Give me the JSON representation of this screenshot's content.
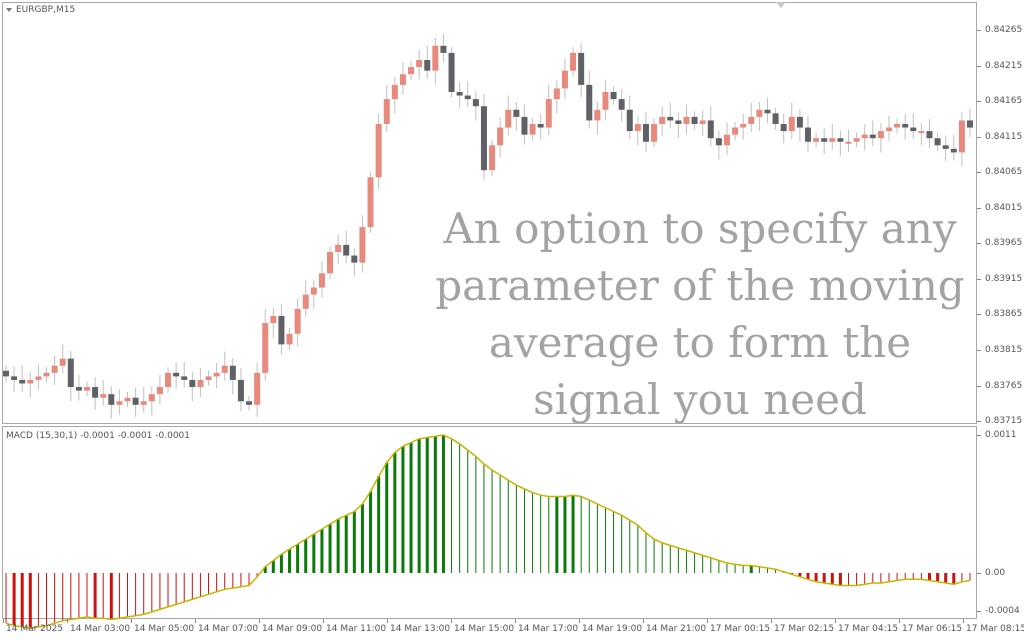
{
  "chart": {
    "symbol": "EURGBP,M15",
    "indicator_label": "MACD (15,30,1) -0.0001 -0.0001 -0.0001",
    "overlay_text": "An option to specify any parameter of the moving average to form the signal you need",
    "price_ticks": [
      "0.84265",
      "0.84215",
      "0.84165",
      "0.84115",
      "0.84065",
      "0.84015",
      "0.83965",
      "0.83915",
      "0.83865",
      "0.83815",
      "0.83765",
      "0.83715"
    ],
    "macd_ticks": [
      "0.0011",
      "0.00",
      "-0.0004"
    ],
    "time_ticks": [
      "14 Mar 2025",
      "14 Mar 03:00",
      "14 Mar 05:00",
      "14 Mar 07:00",
      "14 Mar 09:00",
      "14 Mar 11:00",
      "14 Mar 13:00",
      "14 Mar 15:00",
      "14 Mar 17:00",
      "14 Mar 19:00",
      "14 Mar 21:00",
      "17 Mar 00:15",
      "17 Mar 02:15",
      "17 Mar 04:15",
      "17 Mar 06:15",
      "17 Mar 08:15"
    ],
    "colors": {
      "bull": "#e8897e",
      "bear": "#5f6166",
      "hist_up": "#0a7a0a",
      "hist_down": "#cc1111",
      "signal": "#c8b400",
      "grid": "#a8a8a8"
    }
  },
  "chart_data": {
    "type": "candlestick+histogram",
    "price_range": [
      0.83705,
      0.84285
    ],
    "macd_range": [
      -0.00045,
      0.00112
    ],
    "candles_close": [
      0.83775,
      0.8377,
      0.83765,
      0.8377,
      0.83775,
      0.8378,
      0.8379,
      0.838,
      0.8376,
      0.83755,
      0.8376,
      0.83745,
      0.8375,
      0.83735,
      0.8374,
      0.83745,
      0.83735,
      0.8374,
      0.8375,
      0.8376,
      0.8378,
      0.83775,
      0.8377,
      0.8376,
      0.8377,
      0.83775,
      0.8378,
      0.8379,
      0.8377,
      0.8374,
      0.83735,
      0.8378,
      0.8385,
      0.8386,
      0.8382,
      0.83835,
      0.8387,
      0.8389,
      0.839,
      0.8392,
      0.8395,
      0.8396,
      0.83945,
      0.83935,
      0.83985,
      0.84055,
      0.8413,
      0.84165,
      0.84185,
      0.842,
      0.8421,
      0.8422,
      0.84205,
      0.8424,
      0.8423,
      0.84175,
      0.8417,
      0.84165,
      0.84155,
      0.84065,
      0.841,
      0.84125,
      0.8415,
      0.8414,
      0.84115,
      0.8413,
      0.84125,
      0.84165,
      0.8418,
      0.84205,
      0.8423,
      0.84185,
      0.84135,
      0.8415,
      0.84175,
      0.84165,
      0.8415,
      0.8412,
      0.8413,
      0.84105,
      0.8413,
      0.8414,
      0.84135,
      0.8413,
      0.8414,
      0.8413,
      0.84135,
      0.8411,
      0.841,
      0.84115,
      0.84125,
      0.8413,
      0.8414,
      0.8415,
      0.84145,
      0.8413,
      0.8412,
      0.8414,
      0.84125,
      0.84105,
      0.8411,
      0.84105,
      0.8411,
      0.84105,
      0.84105,
      0.8411,
      0.84115,
      0.8411,
      0.8412,
      0.84125,
      0.8413,
      0.84125,
      0.8412,
      0.8412,
      0.8411,
      0.841,
      0.84095,
      0.8409,
      0.84135,
      0.84125
    ],
    "macd_hist": [
      -0.0004,
      -0.00042,
      -0.00043,
      -0.00044,
      -0.00043,
      -0.00042,
      -0.0004,
      -0.00038,
      -0.00037,
      -0.00036,
      -0.00035,
      -0.00036,
      -0.00036,
      -0.00037,
      -0.00036,
      -0.00035,
      -0.00034,
      -0.00033,
      -0.00031,
      -0.00029,
      -0.00027,
      -0.00025,
      -0.00023,
      -0.00021,
      -0.00019,
      -0.00017,
      -0.00015,
      -0.00013,
      -0.00012,
      -0.00011,
      -0.0001,
      -3e-05,
      5e-05,
      0.0001,
      0.00015,
      0.00019,
      0.00023,
      0.00027,
      0.00031,
      0.00035,
      0.00039,
      0.00043,
      0.00046,
      0.00049,
      0.00055,
      0.00065,
      0.00077,
      0.00088,
      0.00096,
      0.00101,
      0.00104,
      0.00107,
      0.00108,
      0.00109,
      0.0011,
      0.00107,
      0.00103,
      0.00098,
      0.00093,
      0.00087,
      0.00082,
      0.00078,
      0.00074,
      0.0007,
      0.00067,
      0.00064,
      0.00062,
      0.00061,
      0.00061,
      0.00061,
      0.00062,
      0.00061,
      0.00058,
      0.00055,
      0.00052,
      0.00049,
      0.00046,
      0.00042,
      0.00038,
      0.00032,
      0.00027,
      0.00024,
      0.00022,
      0.0002,
      0.00018,
      0.00016,
      0.00014,
      0.00012,
      0.0001,
      8e-05,
      7e-05,
      6e-05,
      6e-05,
      5e-05,
      4e-05,
      3e-05,
      1e-05,
      -1e-05,
      -3e-05,
      -5e-05,
      -7e-05,
      -8e-05,
      -9e-05,
      -0.0001,
      -0.0001,
      -0.0001,
      -9e-05,
      -8e-05,
      -8e-05,
      -7e-05,
      -6e-05,
      -5e-05,
      -5e-05,
      -5e-05,
      -6e-05,
      -7e-05,
      -8e-05,
      -9e-05,
      -7e-05,
      -6e-05
    ]
  }
}
